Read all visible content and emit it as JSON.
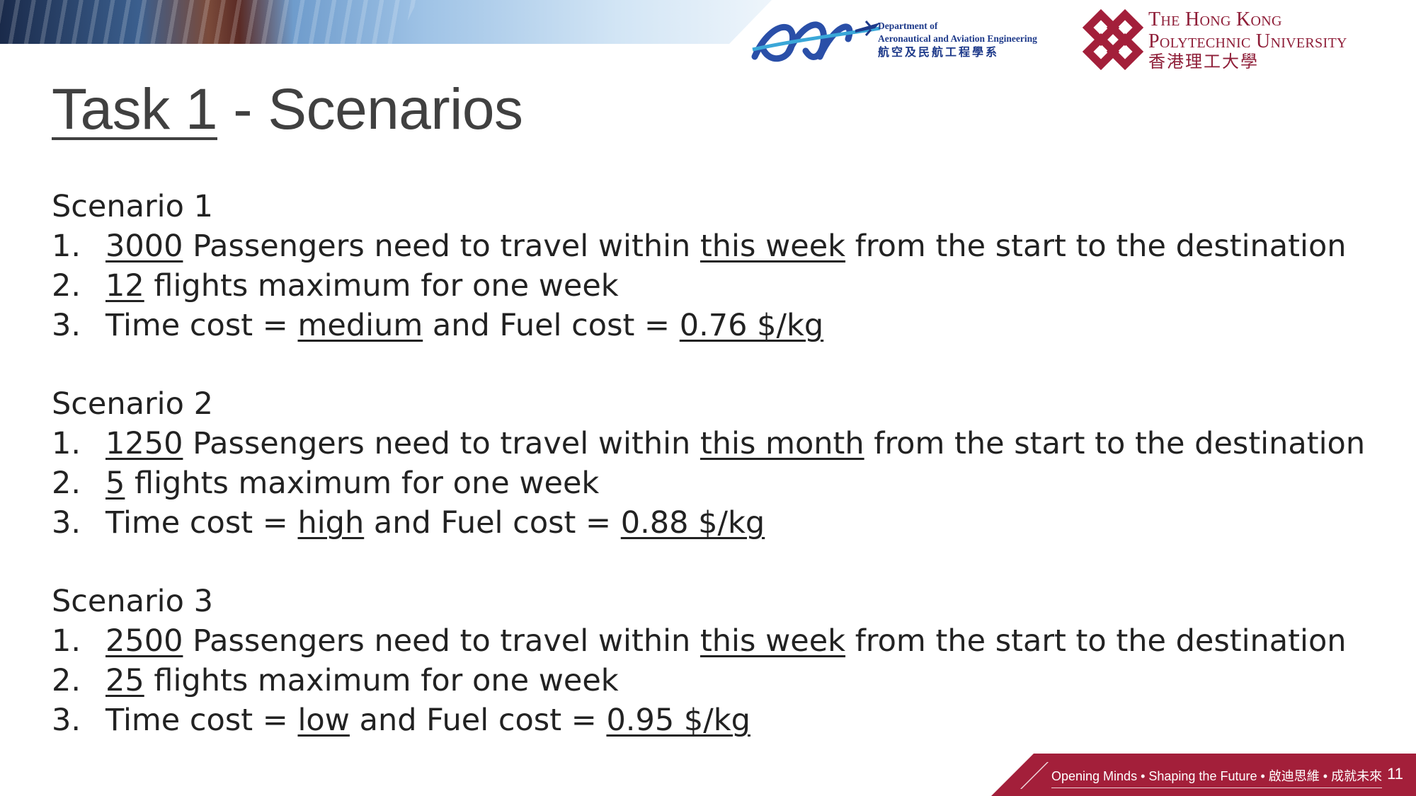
{
  "header": {
    "dept_en_line1": "Department of",
    "dept_en_line2": "Aeronautical and Aviation Engineering",
    "dept_zh": "航空及民航工程學系",
    "univ_line1": "The Hong Kong",
    "univ_line2": "Polytechnic University",
    "univ_zh": "香港理工大學",
    "logo_color": "#1e3a8a",
    "brand_color": "#8e1d37"
  },
  "title": {
    "task": "Task 1",
    "rest": " - Scenarios"
  },
  "scenarios": [
    {
      "title": "Scenario 1",
      "passengers": "3000",
      "period": "this week",
      "flights": "12",
      "time_cost": "medium",
      "fuel_cost": "0.76 $/kg"
    },
    {
      "title": "Scenario 2",
      "passengers": "1250",
      "period": "this month",
      "flights": "5",
      "time_cost": "high",
      "fuel_cost": "0.88 $/kg"
    },
    {
      "title": "Scenario 3",
      "passengers": "2500",
      "period": "this week",
      "flights": "25",
      "time_cost": "low",
      "fuel_cost": "0.95 $/kg"
    }
  ],
  "text": {
    "n1": "1.",
    "n2": "2.",
    "n3": "3.",
    "passengers_mid": " Passengers need to travel within ",
    "passengers_end": " from the start to the destination",
    "flights_end": " flights maximum for one week",
    "time_cost_pre": "Time cost = ",
    "fuel_cost_pre": " and Fuel cost = "
  },
  "footer": {
    "slogan": "Opening Minds • Shaping the Future • 啟迪思維 • 成就未來",
    "page_number": "11",
    "color": "#a31f3a"
  }
}
